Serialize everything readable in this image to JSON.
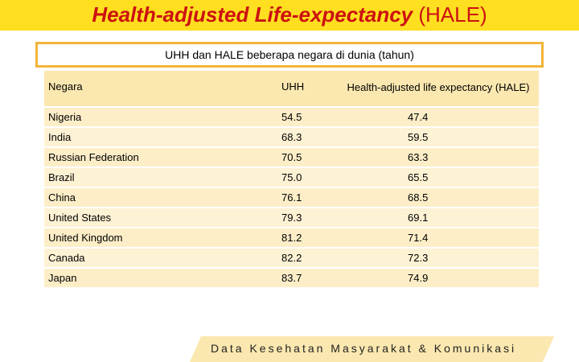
{
  "title": {
    "main": "Health-adjusted Life-expectancy",
    "suffix": "(HALE)"
  },
  "subtitle": "UHH dan HALE beberapa negara di dunia (tahun)",
  "table": {
    "headers": {
      "country": "Negara",
      "uhh": "UHH",
      "hale": "Health-adjusted  life expectancy (HALE)"
    },
    "rows": [
      {
        "country": "Nigeria",
        "uhh": "54.5",
        "hale": "47.4"
      },
      {
        "country": "India",
        "uhh": "68.3",
        "hale": "59.5"
      },
      {
        "country": "Russian Federation",
        "uhh": "70.5",
        "hale": "63.3"
      },
      {
        "country": "Brazil",
        "uhh": "75.0",
        "hale": "65.5"
      },
      {
        "country": "China",
        "uhh": "76.1",
        "hale": "68.5"
      },
      {
        "country": "United States",
        "uhh": "79.3",
        "hale": "69.1"
      },
      {
        "country": "United Kingdom",
        "uhh": "81.2",
        "hale": "71.4"
      },
      {
        "country": "Canada",
        "uhh": "82.2",
        "hale": "72.3"
      },
      {
        "country": "Japan",
        "uhh": "83.7",
        "hale": "74.9"
      }
    ]
  },
  "footer": "Data Kesehatan Masyarakat & Komunikasi",
  "colors": {
    "title_bar": "#ffdf1f",
    "title_text": "#cc1111",
    "box_border": "#f3b437",
    "table_bg": "#fef2d4"
  }
}
